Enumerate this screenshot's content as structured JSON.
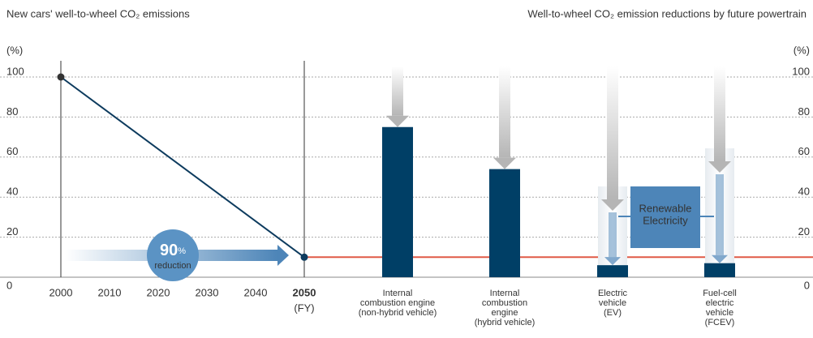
{
  "chart_data": [
    {
      "type": "line",
      "title": "New cars' well-to-wheel CO₂ emissions",
      "ylabel": "(%)",
      "xlabel": "(FY)",
      "x": [
        2000,
        2050
      ],
      "values": [
        100,
        10
      ],
      "color": "#0d3b5e",
      "xlim": [
        2000,
        2050
      ],
      "xticks": [
        2000,
        2010,
        2020,
        2030,
        2040,
        2050
      ],
      "ylim": [
        0,
        100
      ],
      "yticks": [
        0,
        20,
        40,
        60,
        80,
        100
      ],
      "grid": true,
      "annotation": {
        "number": "90",
        "unit": "%",
        "text": "reduction"
      }
    },
    {
      "type": "bar",
      "title": "Well-to-wheel CO₂ emission reductions by future powertrain",
      "ylabel": "(%)",
      "categories": [
        [
          "Internal",
          "combustion engine",
          "(non-hybrid vehicle)"
        ],
        [
          "Internal",
          "combustion",
          "engine",
          "(hybrid vehicle)"
        ],
        [
          "Electric",
          "vehicle",
          "(EV)"
        ],
        [
          "Fuel-cell",
          "electric",
          "vehicle",
          "(FCEV)"
        ]
      ],
      "values": [
        75,
        54,
        6,
        7
      ],
      "color": "#003f66",
      "ylim": [
        0,
        100
      ],
      "yticks": [
        0,
        20,
        40,
        60,
        80,
        100
      ],
      "annotation": [
        "Renewable",
        "Electricity"
      ]
    }
  ]
}
